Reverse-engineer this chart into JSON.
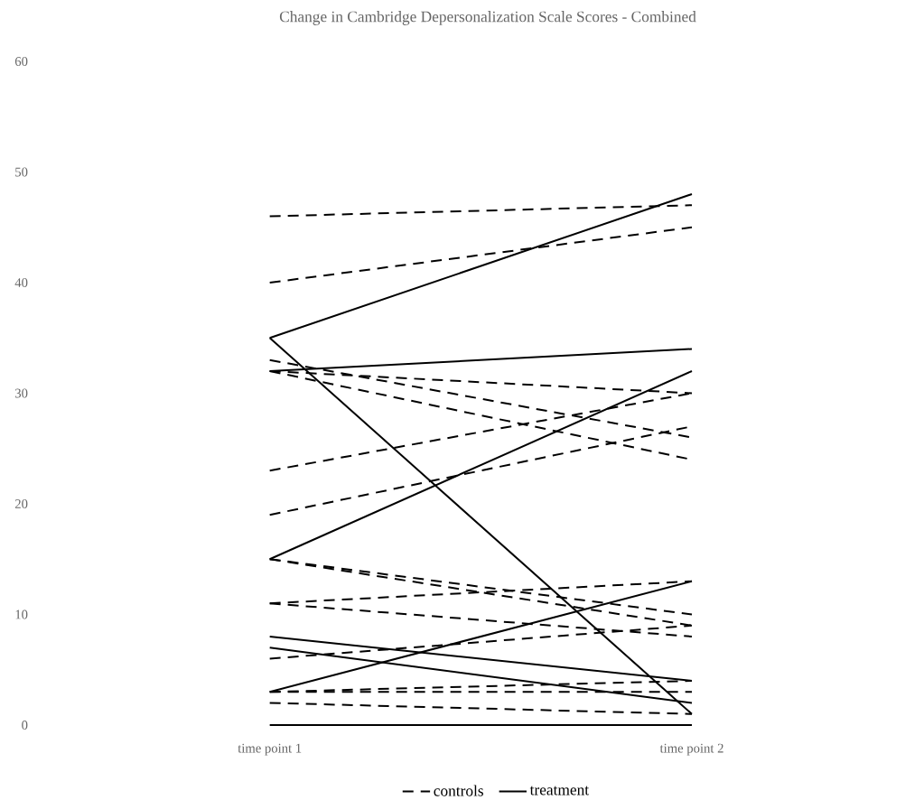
{
  "chart_data": {
    "type": "line",
    "title": "Change in Cambridge Depersonalization Scale Scores - Combined",
    "categories": [
      "time point 1",
      "time point 2"
    ],
    "ylim": [
      0,
      60
    ],
    "yticks": [
      0,
      10,
      20,
      30,
      40,
      50,
      60
    ],
    "grid": false,
    "legend": "bottom",
    "marker": "none",
    "series": [
      {
        "name": "controls",
        "color": "#000000",
        "line_style": "dashed",
        "values": [
          46,
          47
        ]
      },
      {
        "color": "#000000",
        "line_style": "dashed",
        "values": [
          40,
          45
        ]
      },
      {
        "color": "#000000",
        "line_style": "dashed",
        "values": [
          33,
          26
        ]
      },
      {
        "color": "#000000",
        "line_style": "dashed",
        "values": [
          32,
          30
        ]
      },
      {
        "color": "#000000",
        "line_style": "dashed",
        "values": [
          32,
          24
        ]
      },
      {
        "color": "#000000",
        "line_style": "dashed",
        "values": [
          23,
          30
        ]
      },
      {
        "color": "#000000",
        "line_style": "dashed",
        "values": [
          19,
          27
        ]
      },
      {
        "color": "#000000",
        "line_style": "dashed",
        "values": [
          15,
          10
        ]
      },
      {
        "color": "#000000",
        "line_style": "dashed",
        "values": [
          15,
          9
        ]
      },
      {
        "color": "#000000",
        "line_style": "dashed",
        "values": [
          11,
          13
        ]
      },
      {
        "color": "#000000",
        "line_style": "dashed",
        "values": [
          11,
          8
        ]
      },
      {
        "color": "#000000",
        "line_style": "dashed",
        "values": [
          6,
          9
        ]
      },
      {
        "color": "#000000",
        "line_style": "dashed",
        "values": [
          3,
          4
        ]
      },
      {
        "color": "#000000",
        "line_style": "dashed",
        "values": [
          3,
          3
        ]
      },
      {
        "color": "#000000",
        "line_style": "dashed",
        "values": [
          2,
          1
        ]
      },
      {
        "name": "treatment",
        "color": "#000000",
        "line_style": "solid",
        "values": [
          35,
          48
        ]
      },
      {
        "color": "#000000",
        "line_style": "solid",
        "values": [
          35,
          1
        ]
      },
      {
        "color": "#000000",
        "line_style": "solid",
        "values": [
          32,
          34
        ]
      },
      {
        "color": "#000000",
        "line_style": "solid",
        "values": [
          15,
          32
        ]
      },
      {
        "color": "#000000",
        "line_style": "solid",
        "values": [
          3,
          13
        ]
      },
      {
        "color": "#000000",
        "line_style": "solid",
        "values": [
          8,
          4
        ]
      },
      {
        "color": "#000000",
        "line_style": "solid",
        "values": [
          7,
          2
        ]
      },
      {
        "color": "#000000",
        "line_style": "solid",
        "values": [
          0,
          0
        ]
      }
    ]
  }
}
